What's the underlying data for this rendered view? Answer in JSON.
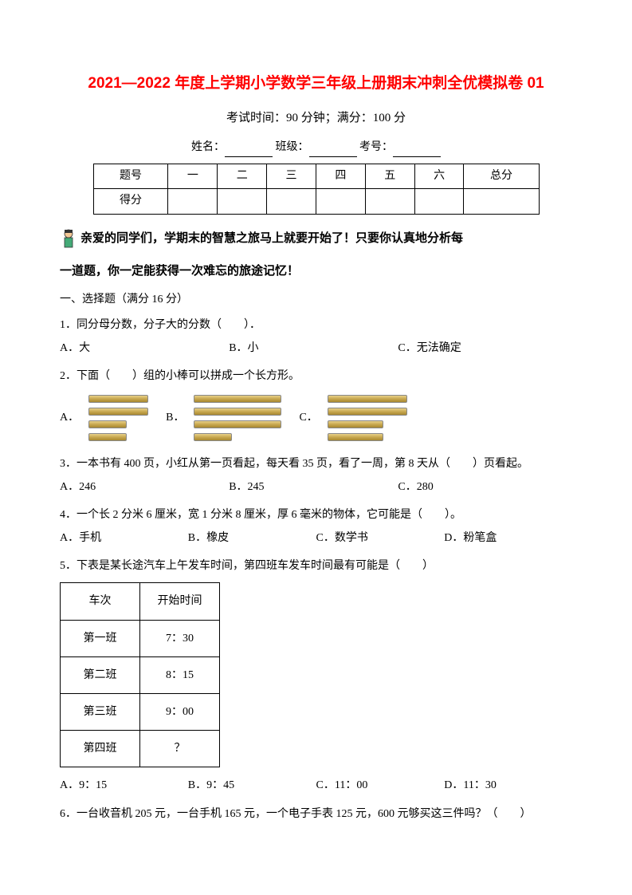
{
  "title": "2021—2022 年度上学期小学数学三年级上册期末冲刺全优模拟卷 01",
  "examInfo": "考试时间：90 分钟；满分：100 分",
  "nameFields": {
    "name": "姓名：",
    "class": "班级：",
    "id": "考号："
  },
  "scoreTable": {
    "headers": [
      "题号",
      "一",
      "二",
      "三",
      "四",
      "五",
      "六",
      "总分"
    ],
    "scoreLabel": "得分"
  },
  "intro1": "亲爱的同学们，学期末的智慧之旅马上就要开始了！只要你认真地分析每",
  "intro2": "一道题，你一定能获得一次难忘的旅途记忆！",
  "section1": "一、选择题（满分 16 分）",
  "q1": {
    "text": "1．同分母分数，分子大的分数（　　）．",
    "a": "A．大",
    "b": "B．小",
    "c": "C．无法确定"
  },
  "q2": {
    "text": "2．下面（　　）组的小棒可以拼成一个长方形。",
    "a": "A．",
    "b": "B．",
    "c": "C．",
    "groupA": [
      75,
      75,
      48,
      48
    ],
    "groupB": [
      110,
      110,
      110,
      48
    ],
    "groupC": [
      100,
      100,
      70,
      70
    ]
  },
  "q3": {
    "text": "3．一本书有 400 页，小红从第一页看起，每天看 35 页，看了一周，第 8 天从（　　）页看起。",
    "a": "A．246",
    "b": "B．245",
    "c": "C．280"
  },
  "q4": {
    "text": "4．一个长 2 分米 6 厘米，宽 1 分米 8 厘米，厚 6 毫米的物体，它可能是（　　）。",
    "a": "A．手机",
    "b": "B．橡皮",
    "c": "C．数学书",
    "d": "D．粉笔盒"
  },
  "q5": {
    "text": "5．下表是某长途汽车上午发车时间，第四班车发车时间最有可能是（　　）",
    "tableHeaders": [
      "车次",
      "开始时间"
    ],
    "rows": [
      [
        "第一班",
        "7：30"
      ],
      [
        "第二班",
        "8：15"
      ],
      [
        "第三班",
        "9：00"
      ],
      [
        "第四班",
        "？"
      ]
    ],
    "a": "A．9：15",
    "b": "B．9：45",
    "c": "C．11：00",
    "d": "D．11：30"
  },
  "q6": {
    "text": "6．一台收音机 205 元，一台手机 165 元，一个电子手表 125 元，600 元够买这三件吗？（　　）"
  }
}
